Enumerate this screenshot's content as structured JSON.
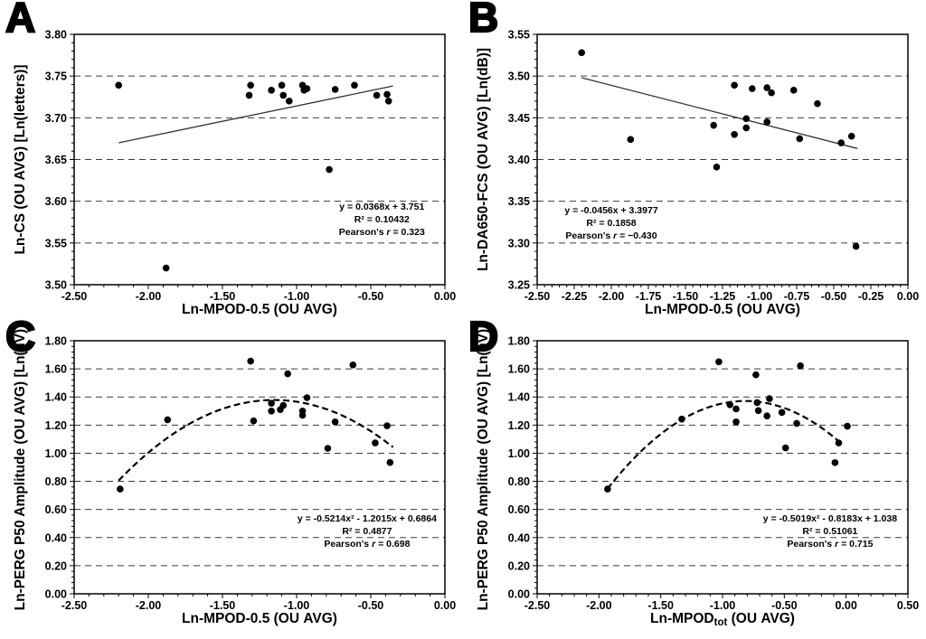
{
  "colors": {
    "background": "#ffffff",
    "foreground": "#000000",
    "points": "#000000",
    "trend_line": "#333333",
    "grid": "#3a3a3a"
  },
  "chart_data": [
    {
      "label": "A",
      "type": "scatter",
      "ylabel": "Ln-CS (OU AVG) [Ln(letters)]",
      "xlabel_parts": [
        {
          "text": "Ln-MPOD-0.5 (OU AVG)"
        }
      ],
      "xlim": [
        -2.5,
        0.0
      ],
      "ylim": [
        3.5,
        3.8
      ],
      "grid": "horizontal-dashed",
      "xticks": {
        "major": 0.5,
        "minor": 0.1,
        "labels": [
          "-2.50",
          "-2.00",
          "-1.50",
          "-1.00",
          "-0.50",
          "0.00"
        ]
      },
      "yticks": {
        "major": 0.05,
        "minor": 0.01,
        "labels": [
          "3.50",
          "3.55",
          "3.60",
          "3.65",
          "3.70",
          "3.75",
          "3.80"
        ]
      },
      "points": [
        [
          -2.2,
          3.739
        ],
        [
          -1.88,
          3.52
        ],
        [
          -1.32,
          3.727
        ],
        [
          -1.31,
          3.739
        ],
        [
          -1.17,
          3.733
        ],
        [
          -1.1,
          3.739
        ],
        [
          -1.09,
          3.727
        ],
        [
          -1.05,
          3.72
        ],
        [
          -0.96,
          3.739
        ],
        [
          -0.95,
          3.733
        ],
        [
          -0.93,
          3.735
        ],
        [
          -0.78,
          3.638
        ],
        [
          -0.74,
          3.734
        ],
        [
          -0.61,
          3.739
        ],
        [
          -0.46,
          3.727
        ],
        [
          -0.39,
          3.728
        ],
        [
          -0.38,
          3.72
        ]
      ],
      "fit": {
        "kind": "linear",
        "coeffs": [
          0.0368,
          3.751
        ],
        "range": [
          -2.2,
          -0.35
        ],
        "style": "solid"
      },
      "annotation": {
        "lines": [
          "y = 0.0368x + 3.751",
          "R² = 0.10432",
          "Pearson's r = 0.323"
        ],
        "fx": 0.83,
        "fy": 0.7
      }
    },
    {
      "label": "B",
      "type": "scatter",
      "ylabel": "Ln-DA650-FCS (OU AVG) [Ln(dB)]",
      "xlabel_parts": [
        {
          "text": "Ln-MPOD-0.5 (OU AVG)"
        }
      ],
      "xlim": [
        -2.5,
        0.0
      ],
      "ylim": [
        3.25,
        3.55
      ],
      "grid": "horizontal-dashed",
      "xticks": {
        "major": 0.25,
        "minor": 0.05,
        "labels": [
          "-2.50",
          "-2.25",
          "-2.00",
          "-1.75",
          "-1.50",
          "-1.25",
          "-1.00",
          "-0.75",
          "-0.50",
          "-0.25",
          "0.00"
        ]
      },
      "yticks": {
        "major": 0.05,
        "minor": 0.01,
        "labels": [
          "3.25",
          "3.30",
          "3.35",
          "3.40",
          "3.45",
          "3.50",
          "3.55"
        ]
      },
      "points": [
        [
          -2.2,
          3.528
        ],
        [
          -1.87,
          3.424
        ],
        [
          -1.31,
          3.441
        ],
        [
          -1.29,
          3.391
        ],
        [
          -1.17,
          3.489
        ],
        [
          -1.17,
          3.43
        ],
        [
          -1.09,
          3.449
        ],
        [
          -1.09,
          3.438
        ],
        [
          -1.05,
          3.485
        ],
        [
          -0.95,
          3.486
        ],
        [
          -0.95,
          3.445
        ],
        [
          -0.92,
          3.48
        ],
        [
          -0.77,
          3.483
        ],
        [
          -0.73,
          3.425
        ],
        [
          -0.61,
          3.467
        ],
        [
          -0.45,
          3.42
        ],
        [
          -0.38,
          3.428
        ],
        [
          -0.35,
          3.296
        ]
      ],
      "fit": {
        "kind": "linear",
        "coeffs": [
          -0.0456,
          3.3977
        ],
        "range": [
          -2.2,
          -0.34
        ],
        "style": "solid"
      },
      "annotation": {
        "lines": [
          "y = -0.0456x + 3.3977",
          "R² = 0.1858",
          "Pearson's r = −0.430"
        ],
        "fx": 0.2,
        "fy": 0.715
      }
    },
    {
      "label": "C",
      "type": "scatter",
      "ylabel": "Ln-PERG P50 Amplitude (OU AVG) [Ln(µV)]",
      "xlabel_parts": [
        {
          "text": "Ln-MPOD-0.5 (OU AVG)"
        }
      ],
      "xlim": [
        -2.5,
        0.0
      ],
      "ylim": [
        0.0,
        1.8
      ],
      "grid": "horizontal-dashed",
      "xticks": {
        "major": 0.5,
        "minor": 0.1,
        "labels": [
          "-2.50",
          "-2.00",
          "-1.50",
          "-1.00",
          "-0.50",
          "0.00"
        ]
      },
      "yticks": {
        "major": 0.2,
        "minor": 0.04,
        "labels": [
          "0.00",
          "0.20",
          "0.40",
          "0.60",
          "0.80",
          "1.00",
          "1.20",
          "1.40",
          "1.60",
          "1.80"
        ]
      },
      "points": [
        [
          -2.19,
          0.745
        ],
        [
          -1.87,
          1.238
        ],
        [
          -1.31,
          1.655
        ],
        [
          -1.29,
          1.23
        ],
        [
          -1.17,
          1.355
        ],
        [
          -1.17,
          1.3
        ],
        [
          -1.11,
          1.31
        ],
        [
          -1.09,
          1.34
        ],
        [
          -1.06,
          1.565
        ],
        [
          -0.96,
          1.3
        ],
        [
          -0.96,
          1.27
        ],
        [
          -0.93,
          1.395
        ],
        [
          -0.79,
          1.035
        ],
        [
          -0.74,
          1.223
        ],
        [
          -0.62,
          1.628
        ],
        [
          -0.47,
          1.073
        ],
        [
          -0.39,
          1.195
        ],
        [
          -0.37,
          0.934
        ]
      ],
      "fit": {
        "kind": "quadratic",
        "coeffs": [
          -0.5214,
          -1.2015,
          0.6864
        ],
        "range": [
          -2.2,
          -0.35
        ],
        "style": "dashed"
      },
      "annotation": {
        "lines": [
          "y = -0.5214x² - 1.2015x + 0.6864",
          "R² = 0.4877",
          "Pearson's r = 0.698"
        ],
        "fx": 0.79,
        "fy": 0.715
      }
    },
    {
      "label": "D",
      "type": "scatter",
      "ylabel": "Ln-PERG P50 Amplitude (OU AVG) [Ln(µV)]",
      "xlabel_parts": [
        {
          "text": "Ln-MPOD"
        },
        {
          "text": "tot",
          "sub": true
        },
        {
          "text": " (OU AVG)"
        }
      ],
      "xlim": [
        -2.5,
        0.5
      ],
      "ylim": [
        0.0,
        1.8
      ],
      "grid": "horizontal-dashed",
      "xticks": {
        "major": 0.5,
        "minor": 0.1,
        "labels": [
          "-2.50",
          "-2.00",
          "-1.50",
          "-1.00",
          "-0.50",
          "0.00",
          "0.50"
        ]
      },
      "yticks": {
        "major": 0.2,
        "minor": 0.04,
        "labels": [
          "0.00",
          "0.20",
          "0.40",
          "0.60",
          "0.80",
          "1.00",
          "1.20",
          "1.40",
          "1.60",
          "1.80"
        ]
      },
      "points": [
        [
          -1.93,
          0.745
        ],
        [
          -1.33,
          1.243
        ],
        [
          -1.03,
          1.65
        ],
        [
          -0.94,
          1.345
        ],
        [
          -0.89,
          1.315
        ],
        [
          -0.89,
          1.223
        ],
        [
          -0.73,
          1.558
        ],
        [
          -0.72,
          1.36
        ],
        [
          -0.71,
          1.303
        ],
        [
          -0.64,
          1.265
        ],
        [
          -0.62,
          1.388
        ],
        [
          -0.52,
          1.29
        ],
        [
          -0.49,
          1.038
        ],
        [
          -0.4,
          1.212
        ],
        [
          -0.37,
          1.622
        ],
        [
          -0.09,
          0.933
        ],
        [
          -0.06,
          1.073
        ],
        [
          0.01,
          1.192
        ]
      ],
      "fit": {
        "kind": "quadratic",
        "coeffs": [
          -0.5019,
          -0.8183,
          1.038
        ],
        "range": [
          -1.93,
          -0.05
        ],
        "style": "dashed"
      },
      "annotation": {
        "lines": [
          "y = -0.5019x² - 0.8183x + 1.038",
          "R² = 0.51061",
          "Pearson's r = 0.715"
        ],
        "fx": 0.79,
        "fy": 0.715
      }
    }
  ]
}
